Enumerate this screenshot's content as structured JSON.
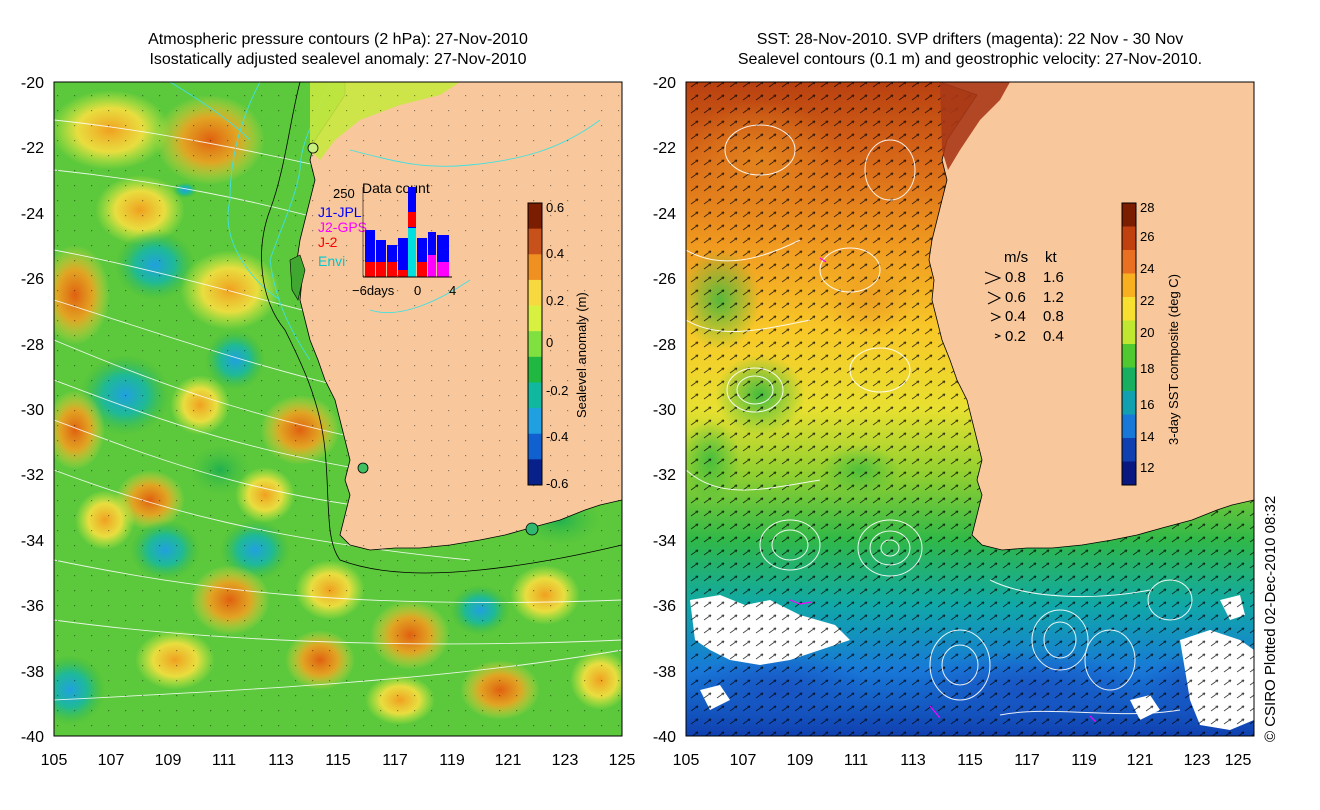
{
  "left_panel": {
    "title_line1": "Atmospheric pressure contours (2 hPa): 27-Nov-2010",
    "title_line2": "Isostatically adjusted sealevel anomaly: 27-Nov-2010",
    "y_ticks": [
      "-20",
      "-22",
      "-24",
      "-26",
      "-28",
      "-30",
      "-32",
      "-34",
      "-36",
      "-38",
      "-40"
    ],
    "x_ticks": [
      "105",
      "107",
      "109",
      "111",
      "113",
      "115",
      "117",
      "119",
      "121",
      "123",
      "125"
    ],
    "colorbar": {
      "label": "Sealevel anomaly (m)",
      "ticks": [
        "0.6",
        "0.4",
        "0.2",
        "0",
        "-0.2",
        "-0.4",
        "-0.6"
      ],
      "colors": [
        "#7a1d00",
        "#c8501a",
        "#f09020",
        "#f8d840",
        "#d8f040",
        "#80e040",
        "#20b840",
        "#10b8a0",
        "#20a0e0",
        "#1060d0",
        "#08208a"
      ]
    },
    "inset": {
      "title": "Data count",
      "y_max": "250",
      "legend": [
        {
          "label": "J1-JPL",
          "color": "#0000ff"
        },
        {
          "label": "J2-GPS",
          "color": "#ff00ff"
        },
        {
          "label": "J-2",
          "color": "#ff0000"
        },
        {
          "label": "Envi",
          "color": "#00e0e0"
        }
      ],
      "x_ticks": [
        "−6days",
        "0",
        "4"
      ]
    }
  },
  "right_panel": {
    "title_line1": "SST: 28-Nov-2010. SVP drifters (magenta): 22 Nov - 30 Nov",
    "title_line2": "Sealevel contours (0.1 m) and geostrophic velocity: 27-Nov-2010.",
    "y_ticks": [
      "-20",
      "-22",
      "-24",
      "-26",
      "-28",
      "-30",
      "-32",
      "-34",
      "-36",
      "-38",
      "-40"
    ],
    "x_ticks": [
      "105",
      "107",
      "109",
      "111",
      "113",
      "115",
      "117",
      "119",
      "121",
      "123",
      "125"
    ],
    "colorbar": {
      "label": "3-day SST composite (deg C)",
      "ticks": [
        "28",
        "26",
        "24",
        "22",
        "20",
        "18",
        "16",
        "14",
        "12"
      ],
      "colors": [
        "#7a1d00",
        "#c04010",
        "#e87020",
        "#f8b020",
        "#f8e030",
        "#c0e830",
        "#50c830",
        "#18b060",
        "#10a0b0",
        "#1878d8",
        "#1040b0",
        "#081880"
      ]
    },
    "velocity_legend": {
      "header_ms": "m/s",
      "header_kt": "kt",
      "rows": [
        {
          "ms": "0.8",
          "kt": "1.6"
        },
        {
          "ms": "0.6",
          "kt": "1.2"
        },
        {
          "ms": "0.4",
          "kt": "0.8"
        },
        {
          "ms": "0.2",
          "kt": "0.4"
        }
      ]
    }
  },
  "credit": "© CSIRO Plotted 02-Dec-2010 08:32",
  "colors": {
    "land": "#f8c89c",
    "coastline": "#000000",
    "contour": "#ffffff",
    "shelf_line": "#40e0e0",
    "drifter": "#ff00ff"
  }
}
